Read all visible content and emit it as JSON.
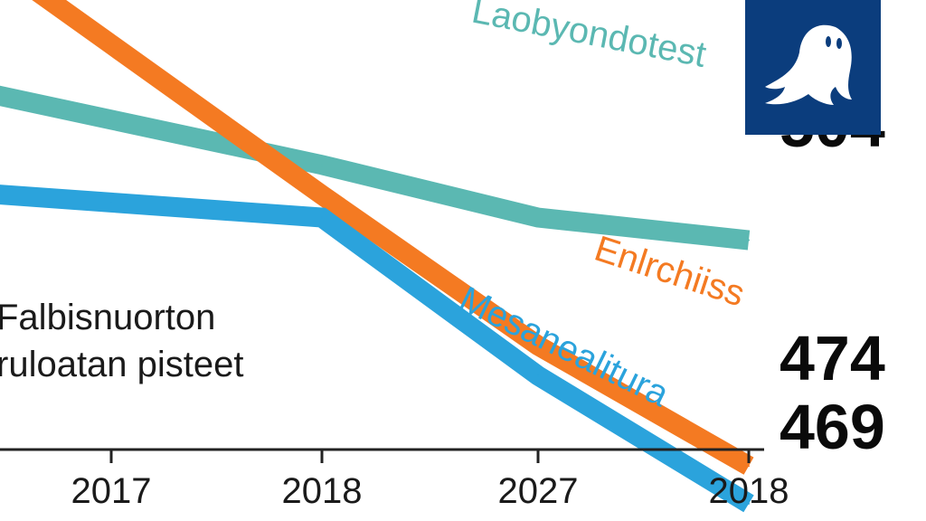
{
  "chart_data": {
    "type": "line",
    "x": [
      "2017",
      "2018",
      "2027",
      "2018"
    ],
    "title": "",
    "xlabel": "",
    "ylabel": "",
    "grid": false,
    "annotation": [
      "Falbisnuorton",
      "ruloatan pisteet"
    ],
    "series": [
      {
        "name": "Laobyondotest",
        "color": "#5bb8b2",
        "values": [
          520,
          514,
          507,
          504
        ],
        "end_label": "504"
      },
      {
        "name": "Enlrchiiss",
        "color": "#f47a22",
        "values": [
          530,
          510,
          490,
          474
        ],
        "end_label": "474"
      },
      {
        "name": "Mesanealitura",
        "color": "#2ba3dc",
        "values": [
          509,
          507,
          486,
          469
        ],
        "end_label": "469"
      }
    ]
  },
  "logo": {
    "icon": "ghost-icon",
    "background": "#0b3d7d"
  }
}
